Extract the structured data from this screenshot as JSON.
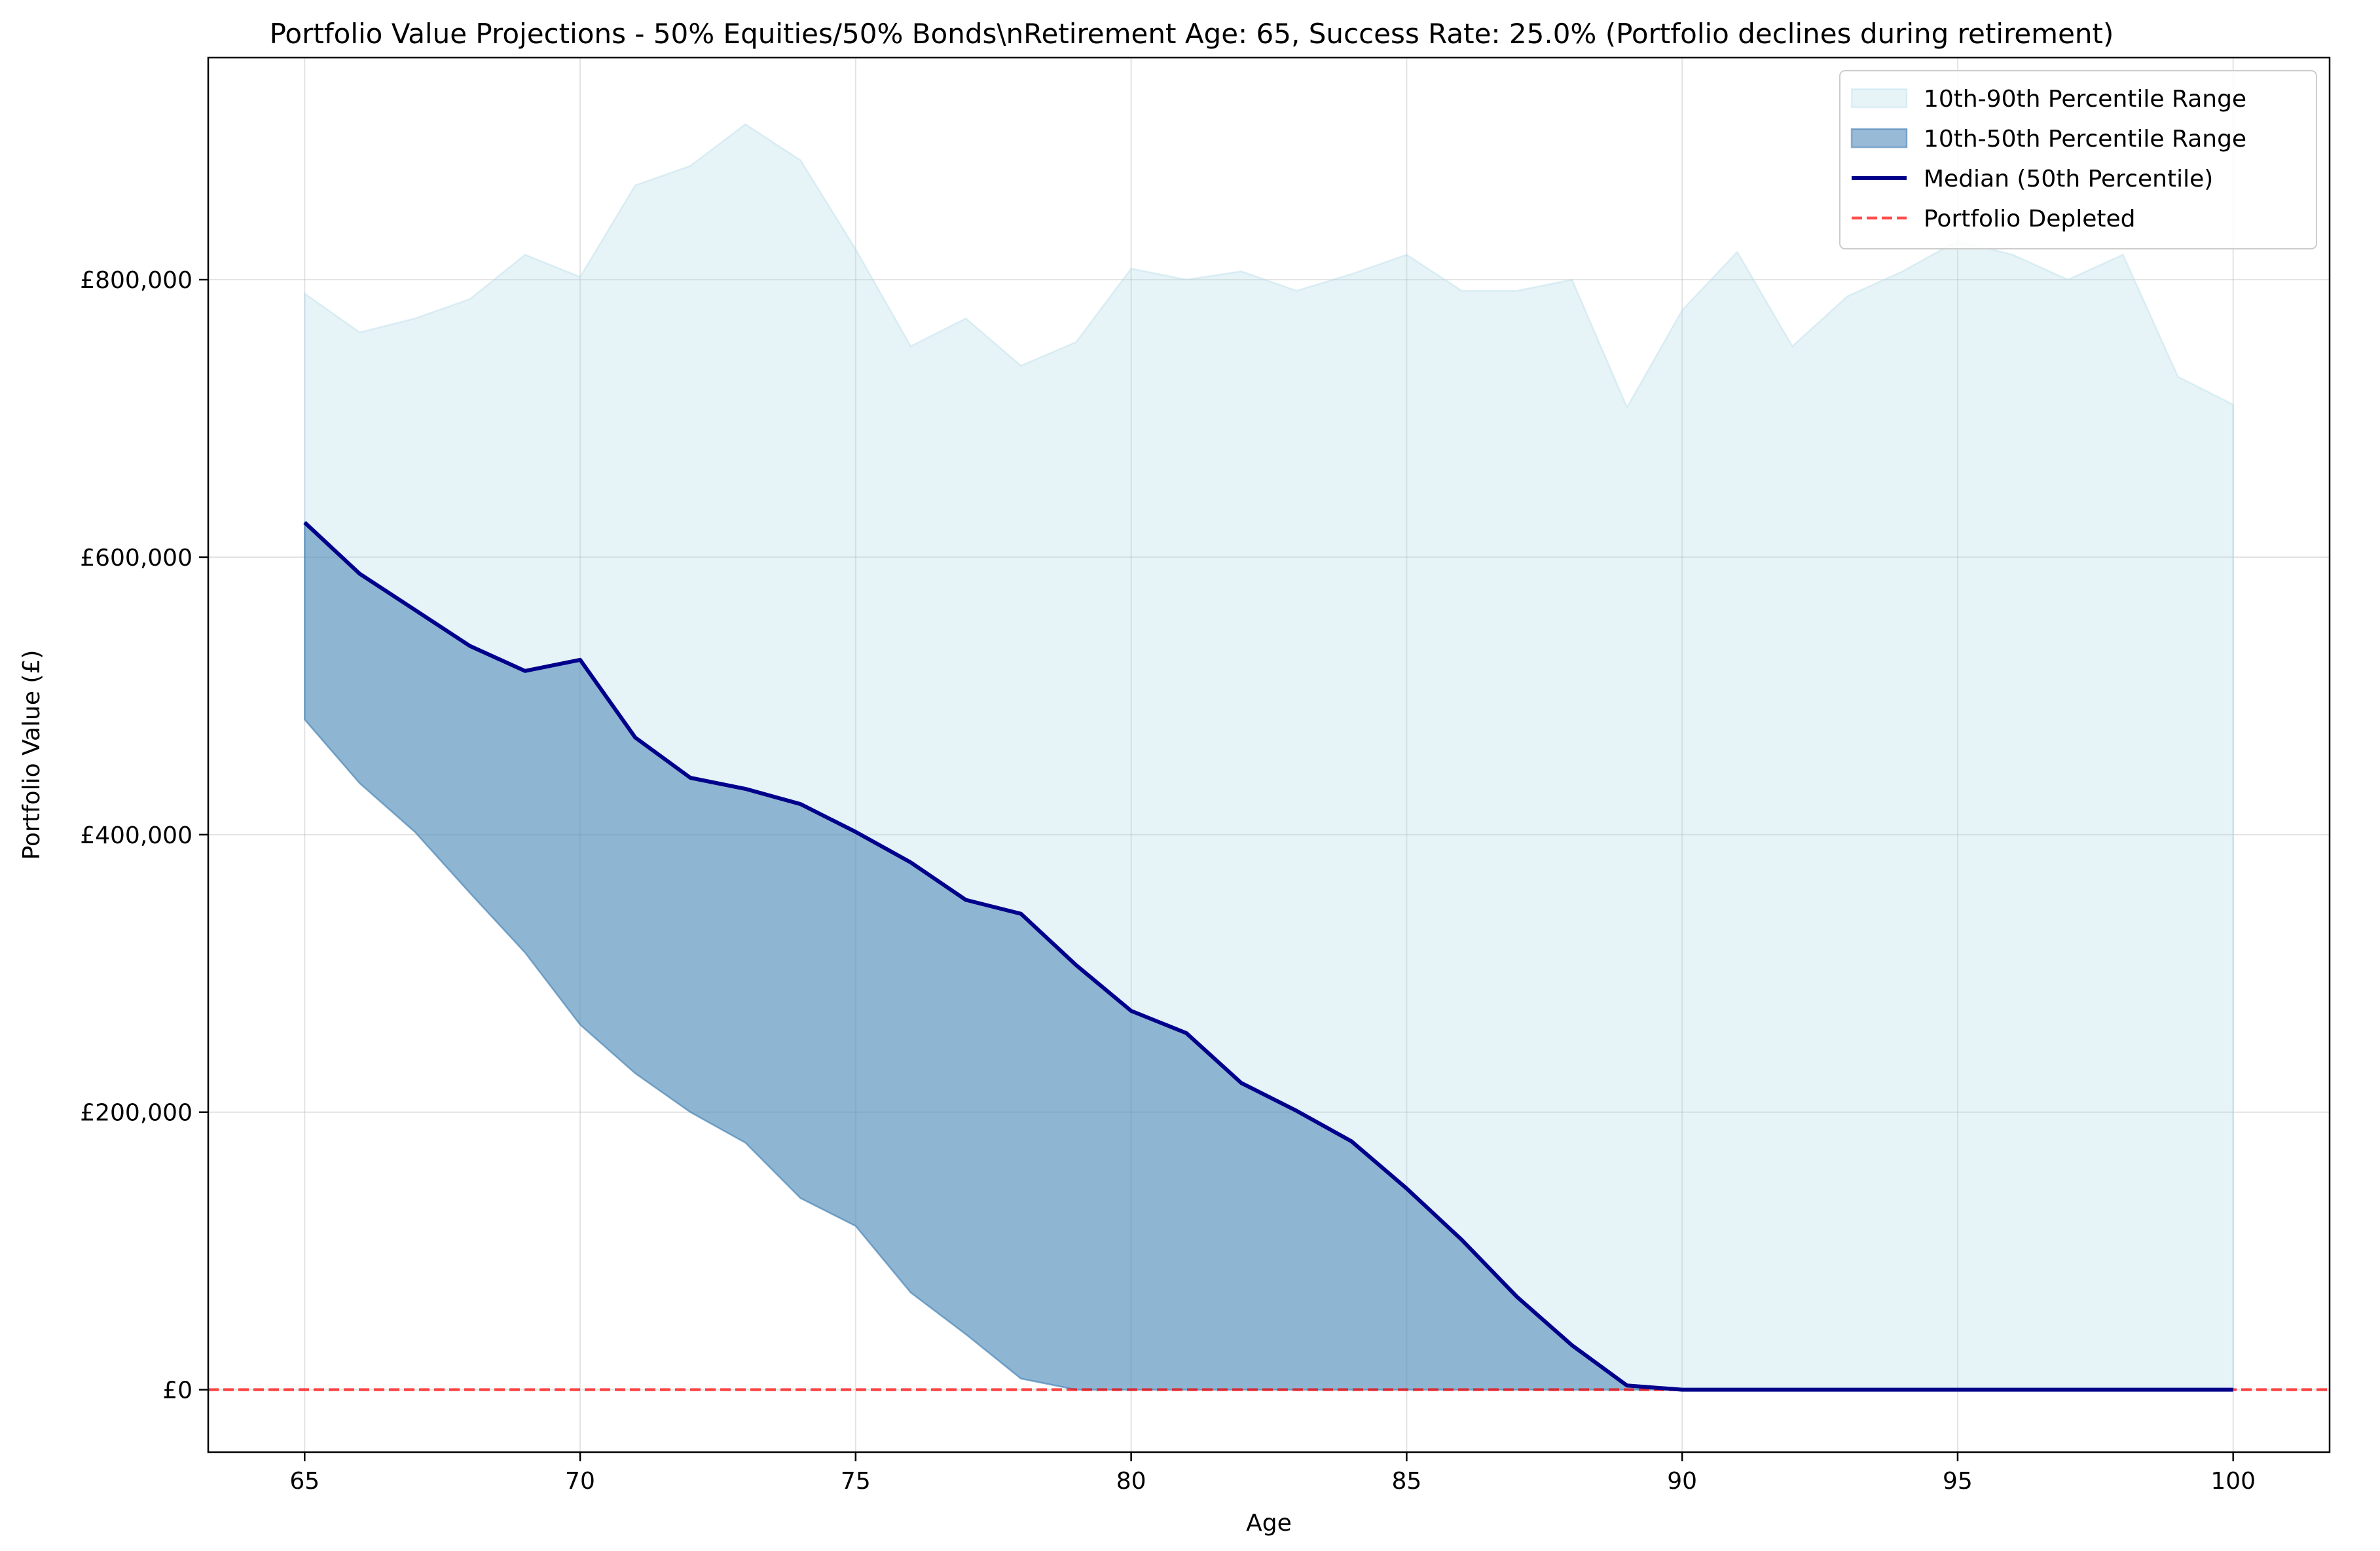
{
  "chart_data": {
    "type": "area",
    "title": "Portfolio Value Projections - 50% Equities/50% Bonds\\nRetirement Age: 65, Success Rate: 25.0% (Portfolio declines during retirement)",
    "xlabel": "Age",
    "ylabel": "Portfolio Value (£)",
    "xlim": [
      63.25,
      101.75
    ],
    "ylim": [
      -45000,
      960000
    ],
    "xticks": [
      65,
      70,
      75,
      80,
      85,
      90,
      95,
      100
    ],
    "xtick_labels": [
      "65",
      "70",
      "75",
      "80",
      "85",
      "90",
      "95",
      "100"
    ],
    "yticks": [
      0,
      200000,
      400000,
      600000,
      800000
    ],
    "ytick_labels": [
      "£0",
      "£200,000",
      "£400,000",
      "£600,000",
      "£800,000"
    ],
    "grid": true,
    "legend_position": "top-right",
    "x": [
      65,
      66,
      67,
      68,
      69,
      70,
      71,
      72,
      73,
      74,
      75,
      76,
      77,
      78,
      79,
      80,
      81,
      82,
      83,
      84,
      85,
      86,
      87,
      88,
      89,
      90,
      91,
      92,
      93,
      94,
      95,
      96,
      97,
      98,
      99,
      100
    ],
    "series": [
      {
        "name": "10th-90th Percentile Range",
        "kind": "band",
        "color": "#add8e6",
        "lower": [
          483000,
          437000,
          402000,
          358000,
          315000,
          263000,
          228000,
          200000,
          178000,
          138000,
          118000,
          70000,
          40000,
          8000,
          0,
          0,
          0,
          0,
          0,
          0,
          0,
          0,
          0,
          0,
          0,
          0,
          0,
          0,
          0,
          0,
          0,
          0,
          0,
          0,
          0,
          0
        ],
        "upper": [
          790000,
          762000,
          772000,
          786000,
          818000,
          802000,
          868000,
          882000,
          912000,
          886000,
          822000,
          752000,
          772000,
          738000,
          755000,
          808000,
          800000,
          806000,
          792000,
          804000,
          818000,
          792000,
          792000,
          800000,
          708000,
          778000,
          820000,
          752000,
          788000,
          806000,
          828000,
          818000,
          800000,
          818000,
          730000,
          710000
        ]
      },
      {
        "name": "10th-50th Percentile Range",
        "kind": "band",
        "color": "#4682b4",
        "lower": [
          483000,
          437000,
          402000,
          358000,
          315000,
          263000,
          228000,
          200000,
          178000,
          138000,
          118000,
          70000,
          40000,
          8000,
          0,
          0,
          0,
          0,
          0,
          0,
          0,
          0,
          0,
          0,
          0,
          0,
          0,
          0,
          0,
          0,
          0,
          0,
          0,
          0,
          0,
          0
        ],
        "upper": [
          625000,
          588000,
          562000,
          536000,
          518000,
          526000,
          470000,
          441000,
          433000,
          422000,
          402000,
          380000,
          353000,
          343000,
          306000,
          273000,
          257000,
          221000,
          201000,
          179000,
          145000,
          108000,
          67000,
          32000,
          3000,
          0,
          0,
          0,
          0,
          0,
          0,
          0,
          0,
          0,
          0,
          0
        ]
      },
      {
        "name": "Median (50th Percentile)",
        "kind": "line",
        "color": "#00008b",
        "values": [
          625000,
          588000,
          562000,
          536000,
          518000,
          526000,
          470000,
          441000,
          433000,
          422000,
          402000,
          380000,
          353000,
          343000,
          306000,
          273000,
          257000,
          221000,
          201000,
          179000,
          145000,
          108000,
          67000,
          32000,
          3000,
          0,
          0,
          0,
          0,
          0,
          0,
          0,
          0,
          0,
          0,
          0
        ]
      },
      {
        "name": "Portfolio Depleted",
        "kind": "hline",
        "color": "#ff0000",
        "value": 0
      }
    ]
  }
}
